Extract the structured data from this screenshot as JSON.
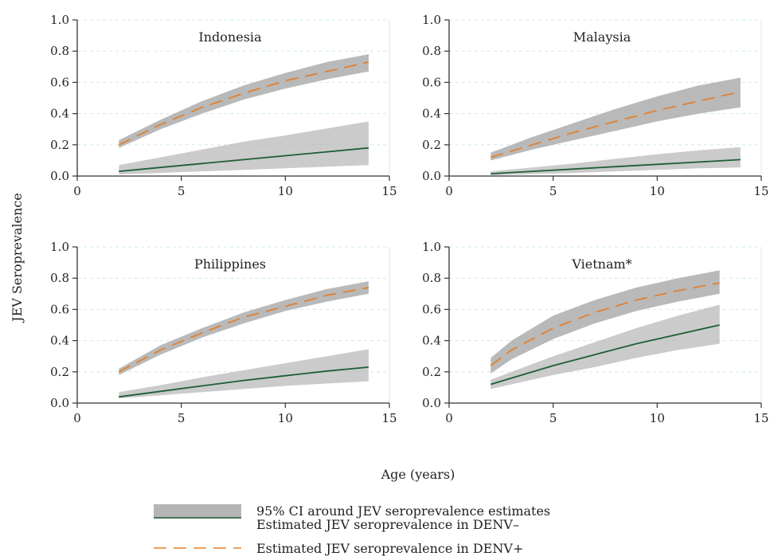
{
  "colors": {
    "ci_band": "#b5b5b5",
    "denv_negative": "#1e5e36",
    "denv_positive": "#e0802f",
    "axis": "#333333",
    "gridline": "#cfe8ec"
  },
  "figure": {
    "ylabel": "JEV Seroprevalence",
    "xlabel": "Age (years)"
  },
  "legend": {
    "items": [
      {
        "key": "ci",
        "label": "95% CI around JEV seroprevalence estimates"
      },
      {
        "key": "neg",
        "label": "Estimated JEV seroprevalence in DENV–"
      },
      {
        "key": "pos",
        "label": "Estimated JEV seroprevalence in DENV+"
      }
    ]
  },
  "chart_data": [
    {
      "type": "line",
      "title": "Indonesia",
      "xlim": [
        0,
        15
      ],
      "ylim": [
        0,
        1.0
      ],
      "xticks": [
        "0",
        "5",
        "10",
        "15"
      ],
      "yticks": [
        "0.0",
        "0.2",
        "0.4",
        "0.6",
        "0.8",
        "1.0"
      ],
      "grid": true,
      "x": [
        2,
        4,
        6,
        8,
        10,
        12,
        14
      ],
      "series": [
        {
          "name": "Estimated JEV seroprevalence in DENV–",
          "style": "solid",
          "values": [
            0.03,
            0.055,
            0.08,
            0.105,
            0.13,
            0.155,
            0.18
          ],
          "ci_low": [
            0.01,
            0.02,
            0.03,
            0.04,
            0.05,
            0.06,
            0.07
          ],
          "ci_high": [
            0.07,
            0.12,
            0.17,
            0.22,
            0.26,
            0.305,
            0.35
          ]
        },
        {
          "name": "Estimated JEV seroprevalence in DENV+",
          "style": "dashed",
          "values": [
            0.2,
            0.33,
            0.44,
            0.53,
            0.61,
            0.67,
            0.73
          ],
          "ci_low": [
            0.18,
            0.3,
            0.4,
            0.49,
            0.56,
            0.62,
            0.67
          ],
          "ci_high": [
            0.23,
            0.36,
            0.48,
            0.58,
            0.66,
            0.73,
            0.78
          ]
        }
      ]
    },
    {
      "type": "line",
      "title": "Malaysia",
      "xlim": [
        0,
        15
      ],
      "ylim": [
        0,
        1.0
      ],
      "xticks": [
        "0",
        "5",
        "10",
        "15"
      ],
      "yticks": [
        "0.0",
        "0.2",
        "0.4",
        "0.6",
        "0.8",
        "1.0"
      ],
      "grid": true,
      "x": [
        2,
        4,
        6,
        8,
        10,
        12,
        14
      ],
      "series": [
        {
          "name": "Estimated JEV seroprevalence in DENV–",
          "style": "solid",
          "values": [
            0.015,
            0.03,
            0.045,
            0.06,
            0.075,
            0.09,
            0.105
          ],
          "ci_low": [
            0.005,
            0.012,
            0.02,
            0.03,
            0.04,
            0.05,
            0.055
          ],
          "ci_high": [
            0.03,
            0.055,
            0.08,
            0.11,
            0.14,
            0.165,
            0.185
          ]
        },
        {
          "name": "Estimated JEV seroprevalence in DENV+",
          "style": "dashed",
          "values": [
            0.12,
            0.2,
            0.28,
            0.35,
            0.42,
            0.48,
            0.54
          ],
          "ci_low": [
            0.1,
            0.17,
            0.23,
            0.29,
            0.35,
            0.4,
            0.44
          ],
          "ci_high": [
            0.15,
            0.25,
            0.34,
            0.43,
            0.51,
            0.58,
            0.63
          ]
        }
      ]
    },
    {
      "type": "line",
      "title": "Philippines",
      "xlim": [
        0,
        15
      ],
      "ylim": [
        0,
        1.0
      ],
      "xticks": [
        "0",
        "5",
        "10",
        "15"
      ],
      "yticks": [
        "0.0",
        "0.2",
        "0.4",
        "0.6",
        "0.8",
        "1.0"
      ],
      "grid": true,
      "x": [
        2,
        4,
        6,
        8,
        10,
        12,
        14
      ],
      "series": [
        {
          "name": "Estimated JEV seroprevalence in DENV–",
          "style": "solid",
          "values": [
            0.04,
            0.075,
            0.11,
            0.145,
            0.175,
            0.205,
            0.23
          ],
          "ci_low": [
            0.03,
            0.05,
            0.07,
            0.09,
            0.11,
            0.125,
            0.14
          ],
          "ci_high": [
            0.07,
            0.115,
            0.165,
            0.21,
            0.255,
            0.3,
            0.345
          ]
        },
        {
          "name": "Estimated JEV seroprevalence in DENV+",
          "style": "dashed",
          "values": [
            0.2,
            0.34,
            0.45,
            0.55,
            0.62,
            0.69,
            0.74
          ],
          "ci_low": [
            0.18,
            0.31,
            0.42,
            0.51,
            0.59,
            0.65,
            0.7
          ],
          "ci_high": [
            0.22,
            0.37,
            0.48,
            0.58,
            0.66,
            0.73,
            0.78
          ]
        }
      ]
    },
    {
      "type": "line",
      "title": "Vietnam*",
      "xlim": [
        0,
        15
      ],
      "ylim": [
        0,
        1.0
      ],
      "xticks": [
        "0",
        "5",
        "10",
        "15"
      ],
      "yticks": [
        "0.0",
        "0.2",
        "0.4",
        "0.6",
        "0.8",
        "1.0"
      ],
      "grid": true,
      "x": [
        2,
        3,
        5,
        7,
        9,
        11,
        13
      ],
      "series": [
        {
          "name": "Estimated JEV seroprevalence in DENV–",
          "style": "solid",
          "values": [
            0.12,
            0.16,
            0.24,
            0.31,
            0.38,
            0.44,
            0.5
          ],
          "ci_low": [
            0.09,
            0.12,
            0.18,
            0.23,
            0.29,
            0.34,
            0.38
          ],
          "ci_high": [
            0.15,
            0.2,
            0.3,
            0.39,
            0.48,
            0.56,
            0.63
          ]
        },
        {
          "name": "Estimated JEV seroprevalence in DENV+",
          "style": "dashed",
          "values": [
            0.24,
            0.34,
            0.48,
            0.58,
            0.66,
            0.72,
            0.77
          ],
          "ci_low": [
            0.19,
            0.28,
            0.41,
            0.51,
            0.59,
            0.65,
            0.7
          ],
          "ci_high": [
            0.29,
            0.4,
            0.56,
            0.66,
            0.74,
            0.8,
            0.85
          ]
        }
      ]
    }
  ]
}
